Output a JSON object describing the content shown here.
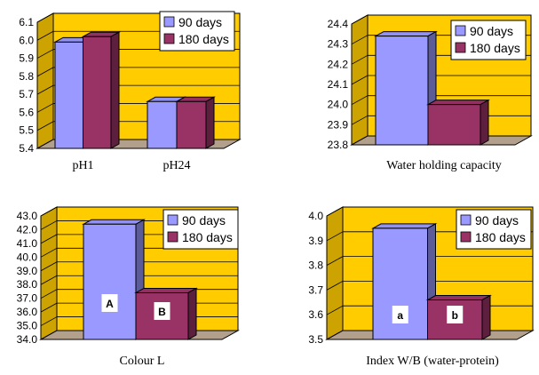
{
  "colors": {
    "wall": "#ffcc00",
    "floor": "#b3a08c",
    "series_90": "#9999ff",
    "series_180": "#993366",
    "grid": "#000000",
    "label_box": "#ffffff"
  },
  "chart_data": [
    {
      "type": "bar",
      "categories": [
        "pH1",
        "pH24"
      ],
      "series": [
        {
          "name": "90 days",
          "values": [
            5.99,
            5.66
          ]
        },
        {
          "name": "180 days",
          "values": [
            6.02,
            5.66
          ]
        }
      ],
      "xlabel": "",
      "ylim": [
        5.4,
        6.1
      ],
      "yticks": [
        "5.4",
        "5.5",
        "5.6",
        "5.7",
        "5.8",
        "5.9",
        "6.0",
        "6.1"
      ],
      "grid": true,
      "legend": "top-right",
      "bar_labels": []
    },
    {
      "type": "bar",
      "categories": [
        ""
      ],
      "series": [
        {
          "name": "90 days",
          "values": [
            24.34
          ]
        },
        {
          "name": "180 days",
          "values": [
            24.0
          ]
        }
      ],
      "xlabel": "Water holding capacity",
      "ylim": [
        23.8,
        24.4
      ],
      "yticks": [
        "23.8",
        "23.9",
        "24.0",
        "24.1",
        "24.2",
        "24.3",
        "24.4"
      ],
      "grid": true,
      "legend": "top-right",
      "bar_labels": []
    },
    {
      "type": "bar",
      "categories": [
        ""
      ],
      "series": [
        {
          "name": "90 days",
          "values": [
            42.4
          ]
        },
        {
          "name": "180 days",
          "values": [
            37.4
          ]
        }
      ],
      "xlabel": "Colour L",
      "ylim": [
        34.0,
        43.0
      ],
      "yticks": [
        "34.0",
        "35.0",
        "36.0",
        "37.0",
        "38.0",
        "39.0",
        "40.0",
        "41.0",
        "42.0",
        "43.0"
      ],
      "grid": true,
      "legend": "top-right",
      "bar_labels": [
        "A",
        "B"
      ]
    },
    {
      "type": "bar",
      "categories": [
        ""
      ],
      "series": [
        {
          "name": "90 days",
          "values": [
            3.95
          ]
        },
        {
          "name": "180 days",
          "values": [
            3.66
          ]
        }
      ],
      "xlabel": "Index W/B (water-protein)",
      "ylim": [
        3.5,
        4.0
      ],
      "yticks": [
        "3.5",
        "3.6",
        "3.7",
        "3.8",
        "3.9",
        "4.0"
      ],
      "grid": true,
      "legend": "top-right",
      "bar_labels": [
        "a",
        "b"
      ]
    }
  ]
}
